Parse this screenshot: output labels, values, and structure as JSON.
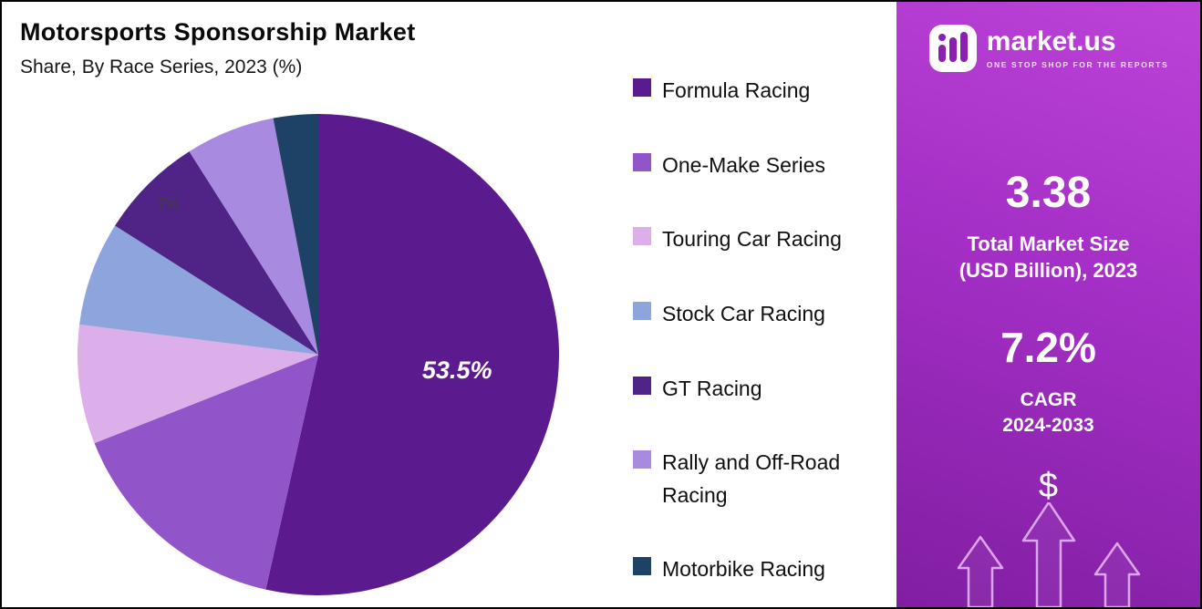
{
  "header": {
    "title": "Motorsports Sponsorship Market",
    "subtitle": "Share, By Race Series, 2023 (%)"
  },
  "chart_data": {
    "type": "pie",
    "title": "Motorsports Sponsorship Market",
    "subtitle": "Share, By Race Series, 2023 (%)",
    "unit": "%",
    "start_angle_deg": 0,
    "direction": "clockwise",
    "legend_position": "right",
    "slices": [
      {
        "label": "Formula Racing",
        "value": 53.5,
        "color": "#5b1b8e",
        "data_label": "53.5%",
        "label_color": "#ffffff",
        "label_r": 0.58,
        "label_size": 27,
        "label_italic": true,
        "label_bold": true
      },
      {
        "label": "One-Make Series",
        "value": 15.5,
        "color": "#9155c9",
        "data_label": ""
      },
      {
        "label": "Touring Car Racing",
        "value": 8,
        "color": "#dcaeea",
        "data_label": ""
      },
      {
        "label": "Stock Car Racing",
        "value": 7,
        "color": "#8da4dd",
        "data_label": ""
      },
      {
        "label": "GT Racing",
        "value": 7,
        "color": "#502487",
        "data_label": "7%",
        "label_color": "#3f3f3f",
        "label_r": 0.88,
        "label_size": 16,
        "label_italic": false,
        "label_bold": false
      },
      {
        "label": "Rally and Off-Road Racing",
        "value": 6,
        "color": "#a88be1",
        "data_label": ""
      },
      {
        "label": "Motorbike Racing",
        "value": 3,
        "color": "#1e4266",
        "data_label": ""
      }
    ]
  },
  "sidebar": {
    "brand": "market.us",
    "tagline": "ONE STOP SHOP FOR THE REPORTS",
    "market_size": {
      "value": "3.38",
      "label_line1": "Total Market Size",
      "label_line2": "(USD Billion), 2023"
    },
    "cagr": {
      "value": "7.2%",
      "label_line1": "CAGR",
      "label_line2": "2024-2033"
    },
    "dollar": "$",
    "accent_color_top": "#bd43d8",
    "accent_color_bottom": "#801ea2"
  }
}
